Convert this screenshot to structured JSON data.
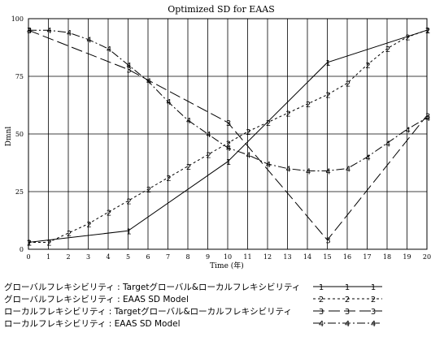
{
  "chart_data": {
    "type": "line",
    "title": "Optimized SD for EAAS",
    "xlabel": "Time (年)",
    "ylabel": "Dmnl",
    "xlim": [
      0,
      20
    ],
    "ylim": [
      0,
      100
    ],
    "x_ticks": [
      "0",
      "1",
      "2",
      "3",
      "4",
      "5",
      "6",
      "7",
      "8",
      "9",
      "10",
      "11",
      "12",
      "13",
      "14",
      "15",
      "16",
      "17",
      "18",
      "19",
      "20"
    ],
    "y_ticks": [
      "0",
      "25",
      "50",
      "75",
      "100"
    ],
    "grid": true,
    "legend_position": "bottom",
    "series": [
      {
        "name": "グローバルフレキシビリティ : Targetグローバル&ローカルフレキシビリティ",
        "marker": "1",
        "dash": "none",
        "x": [
          0,
          5,
          10,
          15,
          20
        ],
        "y": [
          3,
          8,
          38,
          81,
          95
        ]
      },
      {
        "name": "グローバルフレキシビリティ : EAAS SD Model",
        "marker": "2",
        "dash": "3,3",
        "x": [
          0,
          1,
          2,
          3,
          4,
          5,
          6,
          7,
          8,
          9,
          10,
          11,
          12,
          13,
          14,
          15,
          16,
          17,
          18,
          19,
          20
        ],
        "y": [
          3,
          3,
          7,
          11,
          16,
          21,
          26,
          31,
          36,
          41,
          46,
          51,
          55,
          59,
          63,
          67,
          72,
          80,
          87,
          92,
          95
        ]
      },
      {
        "name": "ローカルフレキシビリティ : Targetグローバル&ローカルフレキシビリティ",
        "marker": "3",
        "dash": "14,5",
        "x": [
          0,
          5,
          10,
          15,
          20
        ],
        "y": [
          95,
          78,
          55,
          4,
          58
        ]
      },
      {
        "name": "ローカルフレキシビリティ : EAAS SD Model",
        "marker": "4",
        "dash": "10,3,2,3",
        "x": [
          0,
          1,
          2,
          3,
          4,
          5,
          6,
          7,
          8,
          9,
          10,
          11,
          12,
          13,
          14,
          15,
          16,
          17,
          18,
          19,
          20
        ],
        "y": [
          95,
          95,
          94,
          91,
          87,
          80,
          73,
          64,
          56,
          50,
          44,
          41,
          37,
          35,
          34,
          34,
          35,
          40,
          46,
          52,
          57
        ]
      }
    ]
  }
}
